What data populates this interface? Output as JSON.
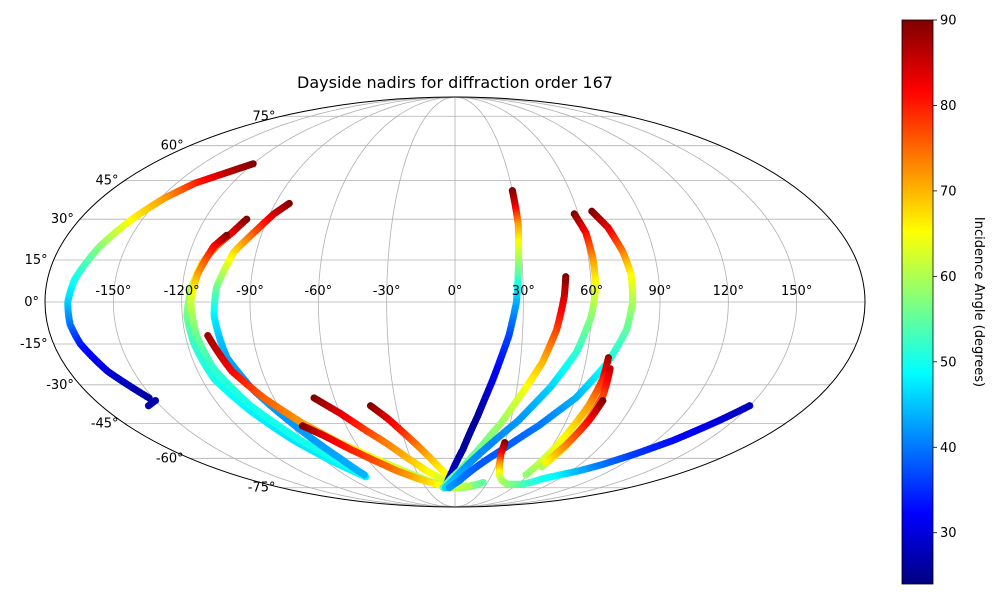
{
  "chart_data": {
    "type": "scatter",
    "projection": "mollweide",
    "title": "Dayside nadirs for diffraction order 167",
    "xlabel": "",
    "ylabel": "",
    "xlim": [
      -180,
      180
    ],
    "ylim": [
      -90,
      90
    ],
    "grid": true,
    "lon_ticks": [
      -150,
      -120,
      -90,
      -60,
      -30,
      0,
      30,
      60,
      90,
      120,
      150
    ],
    "lon_tick_labels": [
      "-150°",
      "-120°",
      "-90°",
      "-60°",
      "-30°",
      "0°",
      "30°",
      "60°",
      "90°",
      "120°",
      "150°"
    ],
    "lat_ticks": [
      75,
      60,
      45,
      30,
      15,
      0,
      -15,
      -30,
      -45,
      -60,
      -75
    ],
    "lat_tick_labels": [
      "75°",
      "60°",
      "45°",
      "30°",
      "15°",
      "0°",
      "-15°",
      "-30°",
      "-45°",
      "-60°",
      "-75°"
    ],
    "colorbar": {
      "label": "Incidence Angle (degrees)",
      "colormap": "jet",
      "range": [
        24,
        90
      ],
      "ticks": [
        30,
        40,
        50,
        60,
        70,
        80,
        90
      ],
      "tick_labels": [
        "30",
        "40",
        "50",
        "60",
        "70",
        "80",
        "90"
      ]
    },
    "series": [
      {
        "points": [
          [
            -120,
            52,
            90
          ],
          [
            -130,
            48,
            86
          ],
          [
            -140,
            44,
            80
          ],
          [
            -148,
            38,
            72
          ],
          [
            -155,
            30,
            66
          ],
          [
            -162,
            20,
            58
          ],
          [
            -168,
            8,
            50
          ],
          [
            -170,
            0,
            46
          ],
          [
            -170,
            -8,
            40
          ],
          [
            -168,
            -15,
            34
          ],
          [
            -162,
            -25,
            30
          ],
          [
            -152,
            -35,
            26
          ]
        ]
      },
      {
        "points": [
          [
            -150,
            -36,
            27
          ],
          [
            -156,
            -38,
            27
          ]
        ]
      },
      {
        "points": [
          [
            -100,
            30,
            90
          ],
          [
            -104,
            25,
            84
          ],
          [
            -109,
            20,
            76
          ],
          [
            -113,
            14,
            68
          ],
          [
            -116,
            5,
            60
          ],
          [
            -118,
            -5,
            56
          ],
          [
            -117,
            -15,
            52
          ],
          [
            -114,
            -28,
            50
          ],
          [
            -106,
            -40,
            48
          ],
          [
            -96,
            -52,
            47
          ],
          [
            -85,
            -62,
            48
          ],
          [
            -75,
            -69,
            48
          ]
        ]
      },
      {
        "points": [
          [
            -106,
            24,
            90
          ],
          [
            -110,
            20,
            82
          ],
          [
            -114,
            10,
            72
          ],
          [
            -116,
            0,
            62
          ],
          [
            -115,
            -12,
            56
          ],
          [
            -112,
            -24,
            52
          ],
          [
            -104,
            -38,
            50
          ],
          [
            -92,
            -52,
            50
          ],
          [
            -80,
            -62,
            50
          ],
          [
            -76,
            -68,
            50
          ]
        ]
      },
      {
        "points": [
          [
            -83,
            36,
            90
          ],
          [
            -88,
            32,
            85
          ],
          [
            -93,
            26,
            78
          ],
          [
            -100,
            18,
            68
          ],
          [
            -105,
            5,
            56
          ],
          [
            -106,
            -5,
            48
          ],
          [
            -104,
            -20,
            43
          ],
          [
            -98,
            -32,
            42
          ],
          [
            -88,
            -46,
            42
          ],
          [
            -78,
            -60,
            43
          ],
          [
            -74,
            -68,
            44
          ]
        ]
      },
      {
        "points": [
          [
            -110,
            -12,
            88
          ],
          [
            -104,
            -25,
            82
          ],
          [
            -95,
            -35,
            76
          ],
          [
            -83,
            -45,
            72
          ],
          [
            -70,
            -53,
            68
          ],
          [
            -55,
            -60,
            64
          ],
          [
            -40,
            -66,
            62
          ],
          [
            -25,
            -71,
            60
          ],
          [
            -10,
            -74,
            58
          ],
          [
            2,
            -75,
            56
          ]
        ]
      },
      {
        "points": [
          [
            -84,
            -46,
            90
          ],
          [
            -76,
            -50,
            84
          ],
          [
            -66,
            -56,
            80
          ],
          [
            -56,
            -61,
            77
          ],
          [
            -45,
            -66,
            74
          ],
          [
            -32,
            -70,
            70
          ],
          [
            -18,
            -73,
            66
          ],
          [
            -5,
            -75,
            62
          ],
          [
            6,
            -75,
            60
          ],
          [
            14,
            -74,
            58
          ],
          [
            22,
            -73,
            56
          ]
        ]
      },
      {
        "points": [
          [
            -70,
            -35,
            90
          ],
          [
            -60,
            -41,
            84
          ],
          [
            -50,
            -48,
            78
          ],
          [
            -42,
            -53,
            74
          ],
          [
            -32,
            -60,
            70
          ],
          [
            -22,
            -66,
            66
          ],
          [
            -12,
            -70,
            63
          ],
          [
            -2,
            -74,
            61
          ],
          [
            8,
            -75,
            59
          ],
          [
            18,
            -74,
            57
          ],
          [
            26,
            -72,
            55
          ]
        ]
      },
      {
        "points": [
          [
            -43,
            -38,
            90
          ],
          [
            -36,
            -43,
            84
          ],
          [
            -28,
            -50,
            78
          ],
          [
            -20,
            -57,
            72
          ],
          [
            -12,
            -64,
            67
          ],
          [
            -4,
            -70,
            64
          ],
          [
            4,
            -74,
            62
          ],
          [
            14,
            -74,
            60
          ]
        ]
      },
      {
        "points": [
          [
            30,
            41,
            90
          ],
          [
            30,
            35,
            84
          ],
          [
            30,
            28,
            72
          ],
          [
            29,
            20,
            64
          ],
          [
            28,
            10,
            55
          ],
          [
            27,
            0,
            44
          ],
          [
            24,
            -12,
            37
          ],
          [
            18,
            -28,
            31
          ],
          [
            12,
            -42,
            26
          ],
          [
            5,
            -56,
            26
          ],
          [
            -2,
            -66,
            28
          ],
          [
            -8,
            -73,
            34
          ],
          [
            -12,
            -75,
            40
          ]
        ]
      },
      {
        "points": [
          [
            49,
            9,
            90
          ],
          [
            48,
            2,
            85
          ],
          [
            45,
            -10,
            78
          ],
          [
            40,
            -22,
            70
          ],
          [
            33,
            -33,
            64
          ],
          [
            25,
            -45,
            59
          ],
          [
            15,
            -56,
            56
          ],
          [
            5,
            -65,
            55
          ],
          [
            -5,
            -71,
            55
          ],
          [
            -12,
            -75,
            56
          ]
        ]
      },
      {
        "points": [
          [
            58,
            32,
            90
          ],
          [
            61,
            25,
            82
          ],
          [
            62,
            15,
            72
          ],
          [
            62,
            5,
            64
          ],
          [
            60,
            -5,
            58
          ],
          [
            55,
            -18,
            52
          ],
          [
            46,
            -31,
            46
          ],
          [
            34,
            -44,
            42
          ],
          [
            20,
            -55,
            41
          ],
          [
            8,
            -64,
            42
          ],
          [
            -2,
            -71,
            44
          ],
          [
            -10,
            -75,
            46
          ]
        ]
      },
      {
        "points": [
          [
            67,
            33,
            90
          ],
          [
            72,
            27,
            84
          ],
          [
            76,
            18,
            74
          ],
          [
            78,
            10,
            66
          ],
          [
            78,
            0,
            60
          ],
          [
            76,
            -10,
            55
          ],
          [
            70,
            -22,
            50
          ],
          [
            60,
            -35,
            44
          ],
          [
            46,
            -46,
            40
          ],
          [
            30,
            -56,
            38
          ],
          [
            16,
            -64,
            38
          ],
          [
            4,
            -71,
            40
          ],
          [
            -6,
            -75,
            42
          ]
        ]
      },
      {
        "points": [
          [
            30,
            -53,
            90
          ],
          [
            30,
            -58,
            82
          ],
          [
            32,
            -63,
            72
          ],
          [
            36,
            -68,
            64
          ],
          [
            42,
            -71,
            60
          ],
          [
            50,
            -73,
            58
          ],
          [
            58,
            -73,
            56
          ],
          [
            64,
            -73,
            54
          ],
          [
            70,
            -72,
            52
          ],
          [
            76,
            -70,
            50
          ],
          [
            86,
            -68,
            48
          ],
          [
            96,
            -66,
            44
          ],
          [
            106,
            -63,
            40
          ],
          [
            118,
            -58,
            36
          ],
          [
            130,
            -52,
            33
          ],
          [
            142,
            -44,
            30
          ],
          [
            150,
            -38,
            28
          ]
        ]
      },
      {
        "points": [
          [
            70,
            -20,
            88
          ],
          [
            70,
            -28,
            80
          ],
          [
            68,
            -38,
            72
          ],
          [
            64,
            -50,
            66
          ],
          [
            60,
            -62,
            62
          ],
          [
            58,
            -68,
            58
          ]
        ]
      },
      {
        "points": [
          [
            72,
            -24,
            86
          ],
          [
            73,
            -34,
            78
          ],
          [
            71,
            -45,
            70
          ],
          [
            68,
            -56,
            64
          ],
          [
            64,
            -64,
            60
          ]
        ]
      },
      {
        "points": [
          [
            74,
            -36,
            90
          ],
          [
            72,
            -44,
            82
          ],
          [
            68,
            -54,
            74
          ],
          [
            64,
            -62,
            66
          ]
        ]
      }
    ]
  }
}
